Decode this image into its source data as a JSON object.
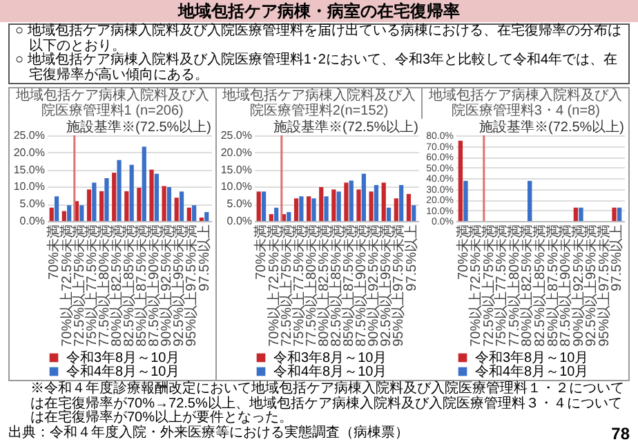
{
  "chart_data": [
    {
      "type": "other",
      "title": "地域包括ケア病棟・病室の在宅復帰率",
      "annotations": [
        "○ 地域包括ケア病棟入院料及び入院医療管理料を届け出ている病棟における、在宅復帰率の分布は以下のとおり。",
        "○ 地域包括ケア病棟入院料及び入院医療管理料1･2において、令和3年と比較して令和4年では、在宅復帰率が高い傾向にある。"
      ]
    },
    {
      "type": "bar",
      "title": "地域包括ケア病棟入院料及び入院医療管理料1 (n=206)",
      "categories": [
        "70%未満",
        "70%以上72.5%未満",
        "72.5%以上75%未満",
        "75%以上77.5%未満",
        "77.5%以上80%未満",
        "80%以上82.5%未満",
        "82.5%以上85%未満",
        "85%以上87.5%未満",
        "87.5%以上90%未満",
        "90%以上92.5%未満",
        "92.5%以上95%未満",
        "95%以上97.5%未満",
        "97.5%以上"
      ],
      "series": [
        {
          "name": "令和3年8月～10月",
          "color": "#c8282d",
          "values": [
            3.9,
            2.9,
            5.8,
            9.2,
            8.7,
            14.1,
            8.7,
            9.7,
            15.0,
            10.2,
            6.8,
            3.9,
            1.0
          ]
        },
        {
          "name": "令和4年8月～10月",
          "color": "#3a70c8",
          "values": [
            7.2,
            4.6,
            4.6,
            11.2,
            12.5,
            17.8,
            16.4,
            21.7,
            13.8,
            9.9,
            8.6,
            4.6,
            2.6
          ]
        }
      ],
      "ylim": [
        0,
        25
      ],
      "yticks": [
        {
          "value": 0,
          "label": "0.0%"
        },
        {
          "value": 5,
          "label": "5.0%"
        },
        {
          "value": 10,
          "label": "10.0%"
        },
        {
          "value": 15,
          "label": "15.0%"
        },
        {
          "value": 20,
          "label": "20.0%"
        },
        {
          "value": 25,
          "label": "25.0%"
        }
      ],
      "grid": "y",
      "legend": "bottom",
      "ref_lines": [
        {
          "axis": "x",
          "value": "72.5%以上75%未満",
          "label": "施設基準※(72.5%以上)",
          "color": "#e07070"
        }
      ]
    },
    {
      "type": "bar",
      "title": "地域包括ケア病棟入院料及び入院医療管理料2(n=152)",
      "categories": [
        "70%未満",
        "70%以上72.5%未満",
        "72.5%以上75%未満",
        "75%以上77.5%未満",
        "77.5%以上80%未満",
        "80%以上82.5%未満",
        "82.5%以上85%未満",
        "85%以上87.5%未満",
        "87.5%以上90%未満",
        "90%以上92.5%未満",
        "92.5%以上95%未満",
        "95%以上97.5%未満",
        "97.5%以上"
      ],
      "series": [
        {
          "name": "令和3年8月～10月",
          "color": "#c8282d",
          "values": [
            8.6,
            2.0,
            2.0,
            6.6,
            7.2,
            9.9,
            9.2,
            11.2,
            9.2,
            8.6,
            11.2,
            6.6,
            7.9
          ]
        },
        {
          "name": "令和4年8月～10月",
          "color": "#3a70c8",
          "values": [
            8.6,
            3.9,
            2.6,
            7.2,
            6.6,
            7.2,
            8.6,
            11.8,
            13.8,
            10.5,
            3.9,
            10.5,
            4.6
          ]
        }
      ],
      "ylim": [
        0,
        25
      ],
      "yticks": [
        {
          "value": 0,
          "label": "0.0%"
        },
        {
          "value": 5,
          "label": "5.0%"
        },
        {
          "value": 10,
          "label": "10.0%"
        },
        {
          "value": 15,
          "label": "15.0%"
        },
        {
          "value": 20,
          "label": "20.0%"
        },
        {
          "value": 25,
          "label": "25.0%"
        }
      ],
      "grid": "y",
      "legend": "bottom",
      "ref_lines": [
        {
          "axis": "x",
          "value": "72.5%以上75%未満",
          "label": "施設基準※(72.5%以上)",
          "color": "#e07070"
        }
      ]
    },
    {
      "type": "bar",
      "title": "地域包括ケア病棟入院料及び入院医療管理料3・4 (n=8)",
      "categories": [
        "70%未満",
        "70%以上72.5%未満",
        "72.5%以上75%未満",
        "75%以上77.5%未満",
        "77.5%以上80%未満",
        "80%以上82.5%未満",
        "82.5%以上85%未満",
        "85%以上87.5%未満",
        "87.5%以上90%未満",
        "90%以上92.5%未満",
        "92.5%以上95%未満",
        "95%以上97.5%未満",
        "97.5%以上"
      ],
      "series": [
        {
          "name": "令和3年8月～10月",
          "color": "#c8282d",
          "values": [
            75,
            0,
            0,
            0,
            0,
            0,
            0,
            0,
            0,
            12.5,
            0,
            0,
            12.5
          ]
        },
        {
          "name": "令和4年8月～10月",
          "color": "#3a70c8",
          "values": [
            37.5,
            0,
            0,
            0,
            0,
            37.5,
            0,
            0,
            0,
            12.5,
            0,
            0,
            12.5
          ]
        }
      ],
      "ylim": [
        0,
        80
      ],
      "yticks": [
        {
          "value": 0,
          "label": "0.0%"
        },
        {
          "value": 10,
          "label": "10.0%"
        },
        {
          "value": 20,
          "label": "20.0%"
        },
        {
          "value": 30,
          "label": "30.0%"
        },
        {
          "value": 40,
          "label": "40.0%"
        },
        {
          "value": 50,
          "label": "50.0%"
        },
        {
          "value": 60,
          "label": "60.0%"
        },
        {
          "value": 70,
          "label": "70.0%"
        },
        {
          "value": 80,
          "label": "80.0%"
        }
      ],
      "grid": "y",
      "legend": "bottom",
      "ref_lines": [
        {
          "axis": "x",
          "value": "72.5%以上75%未満",
          "label": "施設基準※(72.5%以上)",
          "color": "#e07070"
        }
      ]
    },
    {
      "type": "other",
      "annotations": [
        "※令和４年度診療報酬改定において地域包括ケア病棟入院料及び入院医療管理料１・２については在宅復帰率が70%→72.5%以上、地域包括ケア病棟入院料及び入院医療管理料３・４については在宅復帰率が70%以上が要件となった。",
        "出典：令和４年度入院・外来医療等における実態調査（病棟票）",
        "78"
      ]
    }
  ]
}
